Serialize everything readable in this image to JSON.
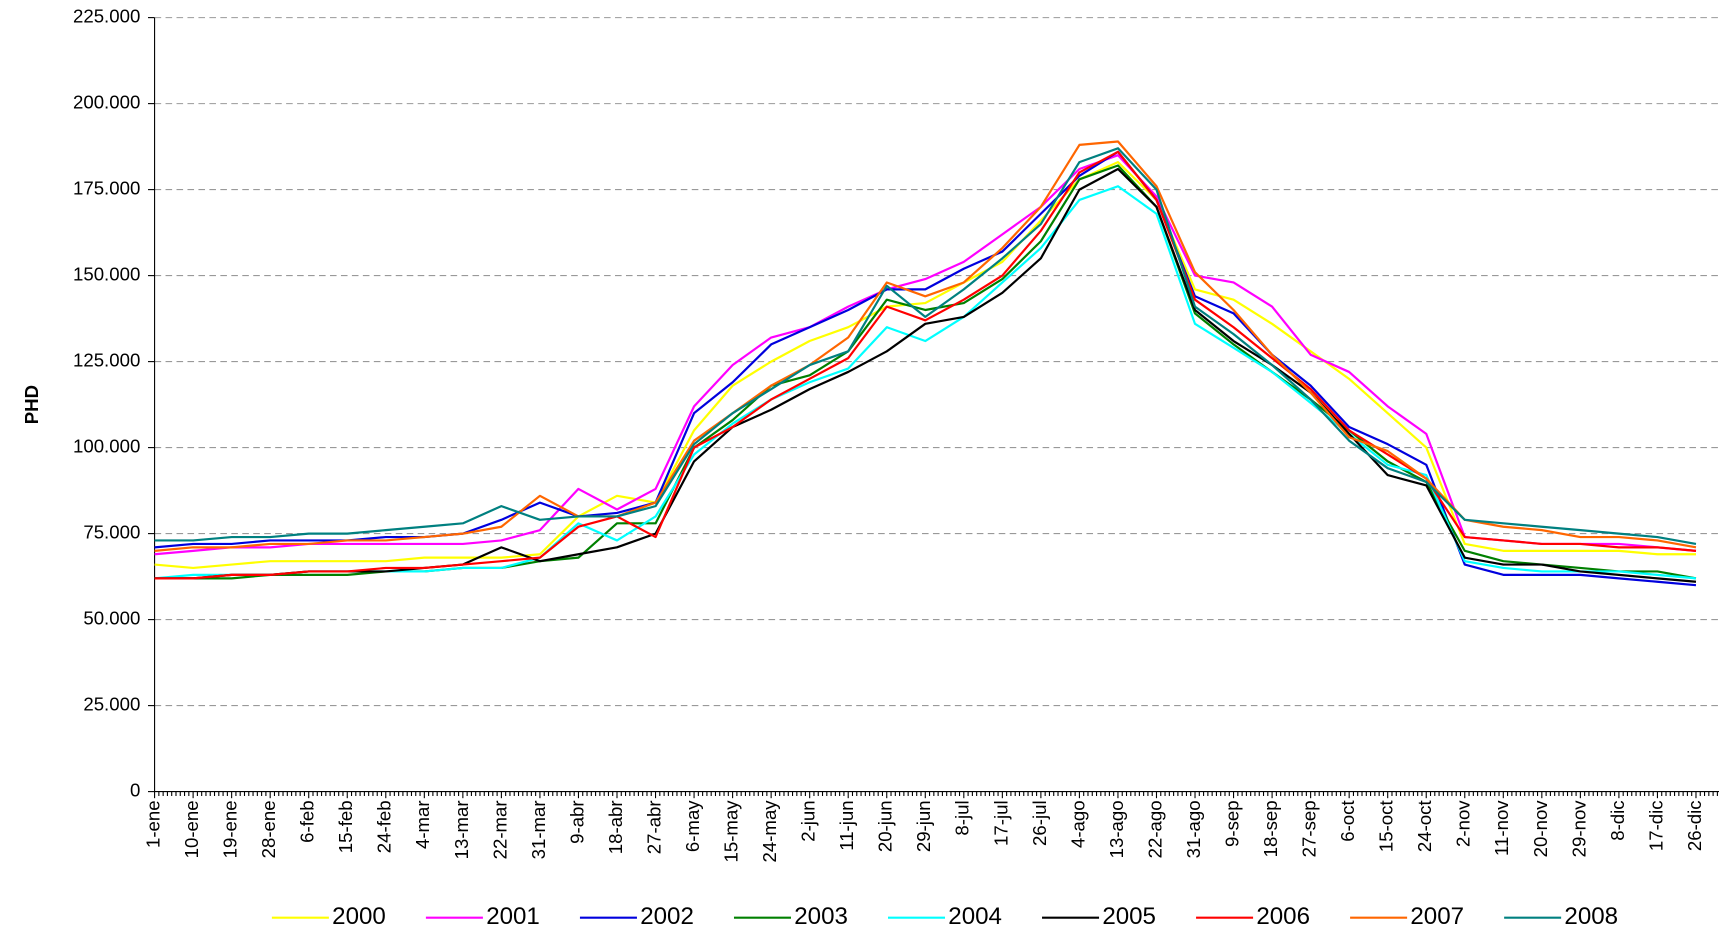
{
  "chart_data": {
    "type": "line",
    "y_label": "PHD",
    "categories": [
      "1-ene",
      "10-ene",
      "19-ene",
      "28-ene",
      "6-feb",
      "15-feb",
      "24-feb",
      "4-mar",
      "13-mar",
      "22-mar",
      "31-mar",
      "9-abr",
      "18-abr",
      "27-abr",
      "6-may",
      "15-may",
      "24-may",
      "2-jun",
      "11-jun",
      "20-jun",
      "29-jun",
      "8-jul",
      "17-jul",
      "26-jul",
      "4-ago",
      "13-ago",
      "22-ago",
      "31-ago",
      "9-sep",
      "18-sep",
      "27-sep",
      "6-oct",
      "15-oct",
      "24-oct",
      "2-nov",
      "11-nov",
      "20-nov",
      "29-nov",
      "8-dic",
      "17-dic",
      "26-dic"
    ],
    "ylim": [
      0,
      225000
    ],
    "yticks": [
      0,
      {
        "value": 25000,
        "label": "25.000"
      },
      {
        "value": 50000,
        "label": "50.000"
      },
      {
        "value": 75000,
        "label": "75.000"
      },
      {
        "value": 100000,
        "label": "100.000"
      },
      {
        "value": 125000,
        "label": "125.000"
      },
      {
        "value": 150000,
        "label": "150.000"
      },
      {
        "value": 175000,
        "label": "175.000"
      },
      {
        "value": 200000,
        "label": "200.000"
      },
      {
        "value": 225000,
        "label": "225.000"
      }
    ],
    "grid": true,
    "legend": "bottom",
    "series": [
      {
        "name": "2000",
        "color": "#ffff00",
        "values": [
          66000,
          65000,
          66000,
          67000,
          67000,
          67000,
          67000,
          68000,
          68000,
          68000,
          69000,
          80000,
          86000,
          84000,
          105000,
          118000,
          125000,
          131000,
          135000,
          141000,
          142000,
          148000,
          154000,
          166000,
          178000,
          183000,
          172000,
          146000,
          143000,
          136000,
          128000,
          120000,
          110000,
          100000,
          72000,
          70000,
          70000,
          70000,
          70000,
          69000,
          69000
        ]
      },
      {
        "name": "2001",
        "color": "#ff00ff",
        "values": [
          69000,
          70000,
          71000,
          71000,
          72000,
          72000,
          72000,
          72000,
          72000,
          73000,
          76000,
          88000,
          82000,
          88000,
          112000,
          124000,
          132000,
          135000,
          141000,
          146000,
          149000,
          154000,
          162000,
          170000,
          181000,
          185000,
          173000,
          150000,
          148000,
          141000,
          127000,
          122000,
          112000,
          104000,
          74000,
          73000,
          72000,
          72000,
          72000,
          71000,
          70000
        ]
      },
      {
        "name": "2002",
        "color": "#0000dd",
        "values": [
          71000,
          72000,
          72000,
          73000,
          73000,
          73000,
          74000,
          74000,
          75000,
          79000,
          84000,
          80000,
          81000,
          84000,
          110000,
          119000,
          130000,
          135000,
          140000,
          146000,
          146000,
          152000,
          157000,
          168000,
          179000,
          186000,
          172000,
          144000,
          139000,
          127000,
          118000,
          106000,
          101000,
          95000,
          66000,
          63000,
          63000,
          63000,
          62000,
          61000,
          60000
        ]
      },
      {
        "name": "2003",
        "color": "#008000",
        "values": [
          62000,
          62000,
          62000,
          63000,
          63000,
          63000,
          64000,
          64000,
          65000,
          65000,
          67000,
          68000,
          78000,
          78000,
          100000,
          108000,
          118000,
          121000,
          128000,
          143000,
          140000,
          142000,
          149000,
          160000,
          178000,
          182000,
          170000,
          139000,
          130000,
          122000,
          114000,
          105000,
          96000,
          90000,
          70000,
          67000,
          66000,
          65000,
          64000,
          64000,
          62000
        ]
      },
      {
        "name": "2004",
        "color": "#00ffff",
        "values": [
          62000,
          63000,
          63000,
          63000,
          64000,
          64000,
          64000,
          64000,
          65000,
          65000,
          68000,
          78000,
          73000,
          80000,
          98000,
          107000,
          114000,
          119000,
          123000,
          135000,
          131000,
          138000,
          148000,
          158000,
          172000,
          176000,
          168000,
          136000,
          129000,
          122000,
          113000,
          104000,
          95000,
          92000,
          67000,
          65000,
          64000,
          64000,
          64000,
          63000,
          62000
        ]
      },
      {
        "name": "2005",
        "color": "#000000",
        "values": [
          62000,
          62000,
          63000,
          63000,
          64000,
          64000,
          64000,
          65000,
          66000,
          71000,
          67000,
          69000,
          71000,
          75000,
          96000,
          106000,
          111000,
          117000,
          122000,
          128000,
          136000,
          138000,
          145000,
          155000,
          175000,
          181000,
          170000,
          140000,
          131000,
          124000,
          116000,
          104000,
          92000,
          89000,
          68000,
          66000,
          66000,
          64000,
          63000,
          62000,
          61000
        ]
      },
      {
        "name": "2006",
        "color": "#ff0000",
        "values": [
          62000,
          62000,
          63000,
          63000,
          64000,
          64000,
          65000,
          65000,
          66000,
          67000,
          68000,
          77000,
          80000,
          74000,
          100000,
          106000,
          114000,
          120000,
          126000,
          141000,
          137000,
          143000,
          150000,
          163000,
          180000,
          186000,
          172000,
          143000,
          135000,
          126000,
          117000,
          105000,
          98000,
          91000,
          74000,
          73000,
          72000,
          72000,
          71000,
          71000,
          70000
        ]
      },
      {
        "name": "2007",
        "color": "#ff6600",
        "values": [
          70000,
          71000,
          71000,
          72000,
          72000,
          73000,
          73000,
          74000,
          75000,
          77000,
          86000,
          80000,
          80000,
          84000,
          102000,
          110000,
          118000,
          124000,
          132000,
          148000,
          144000,
          148000,
          158000,
          170000,
          188000,
          189000,
          176000,
          151000,
          140000,
          127000,
          116000,
          103000,
          99000,
          91000,
          79000,
          77000,
          76000,
          74000,
          74000,
          73000,
          71000
        ]
      },
      {
        "name": "2008",
        "color": "#008080",
        "values": [
          73000,
          73000,
          74000,
          74000,
          75000,
          75000,
          76000,
          77000,
          78000,
          83000,
          79000,
          80000,
          80000,
          83000,
          101000,
          110000,
          117000,
          124000,
          128000,
          147000,
          138000,
          146000,
          155000,
          165000,
          183000,
          187000,
          175000,
          141000,
          133000,
          124000,
          114000,
          102000,
          94000,
          90000,
          79000,
          78000,
          77000,
          76000,
          75000,
          74000,
          72000
        ]
      }
    ]
  }
}
